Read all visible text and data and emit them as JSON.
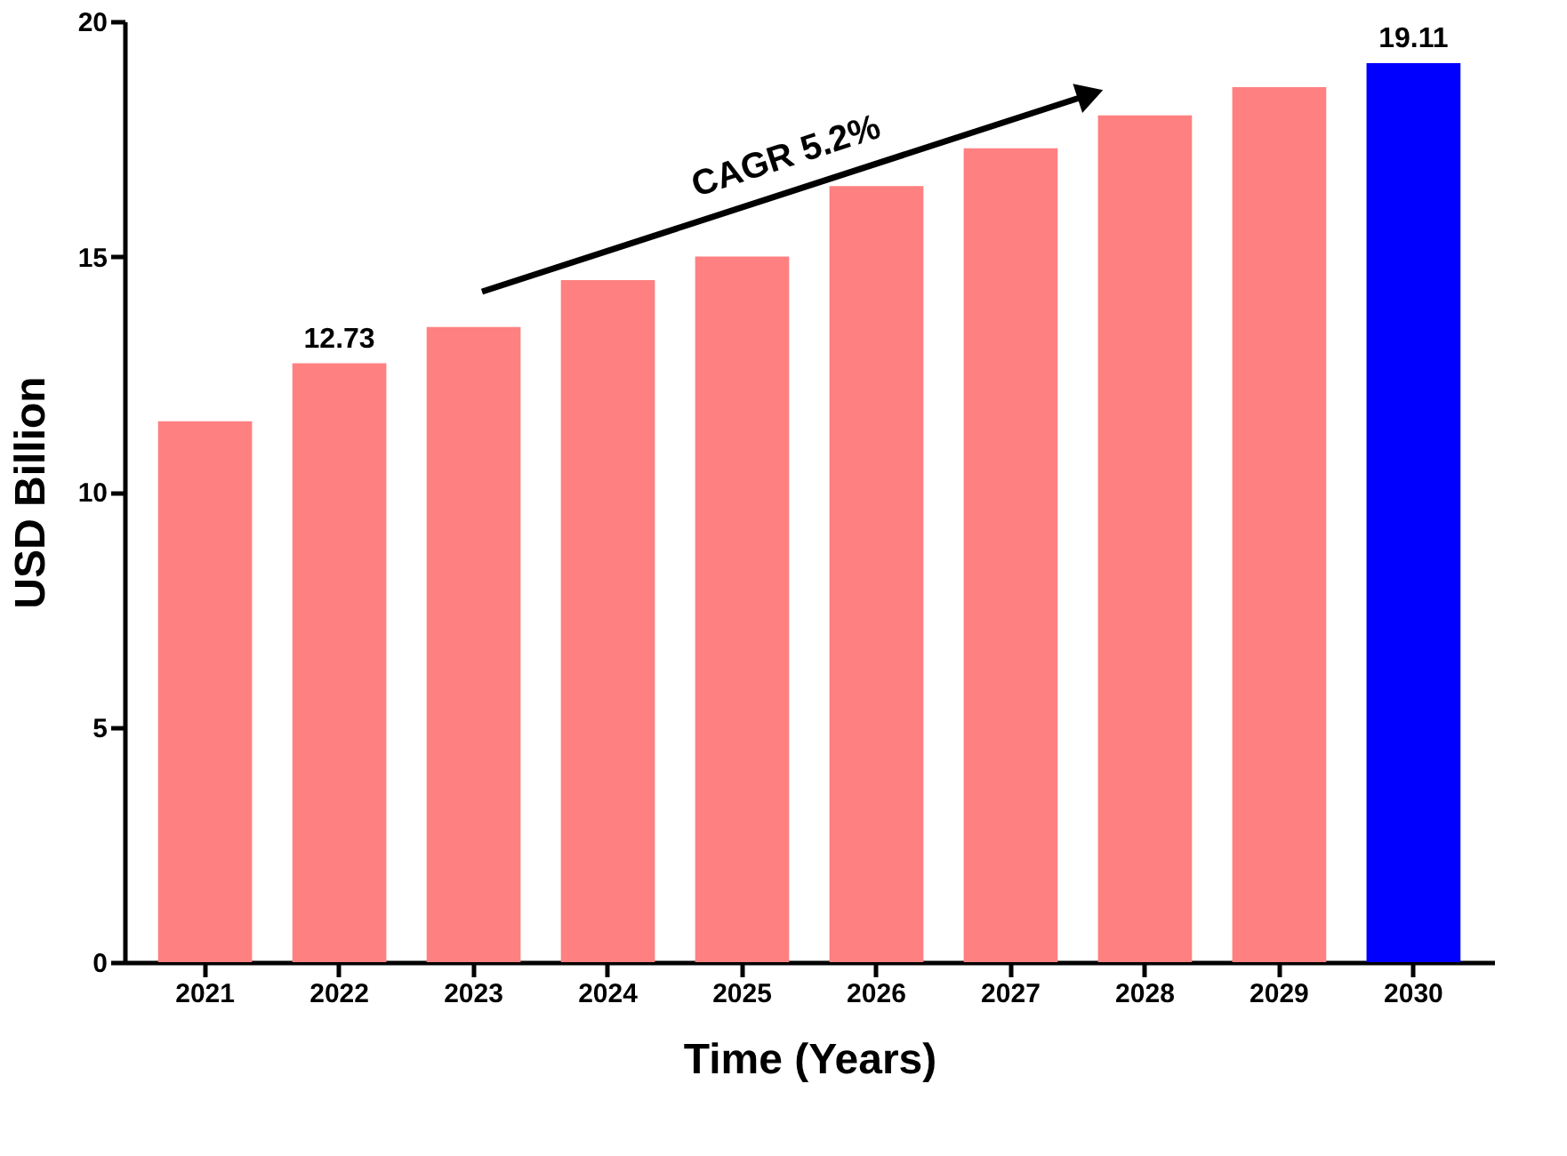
{
  "chart_data": {
    "type": "bar",
    "xlabel": "Time (Years)",
    "ylabel": "USD Billion",
    "categories": [
      "2021",
      "2022",
      "2023",
      "2024",
      "2025",
      "2026",
      "2027",
      "2028",
      "2029",
      "2030"
    ],
    "values": [
      11.5,
      12.73,
      13.5,
      14.5,
      15.0,
      16.5,
      17.3,
      18.0,
      18.6,
      19.11
    ],
    "colors": [
      "#ff8080",
      "#ff8080",
      "#ff8080",
      "#ff8080",
      "#ff8080",
      "#ff8080",
      "#ff8080",
      "#ff8080",
      "#ff8080",
      "#0000ff"
    ],
    "value_labels": [
      null,
      "12.73",
      null,
      null,
      null,
      null,
      null,
      null,
      null,
      "19.11"
    ],
    "annotations": [
      "CAGR 5.2%"
    ],
    "ylim": [
      0,
      20
    ],
    "yticks": [
      0,
      5,
      10,
      15,
      20
    ],
    "grid": false
  }
}
